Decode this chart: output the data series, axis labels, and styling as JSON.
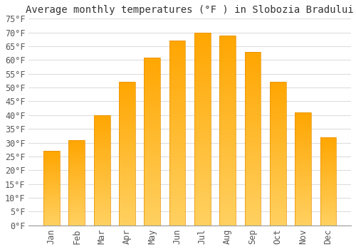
{
  "title": "Average monthly temperatures (°F ) in Slobozia Bradului",
  "months": [
    "Jan",
    "Feb",
    "Mar",
    "Apr",
    "May",
    "Jun",
    "Jul",
    "Aug",
    "Sep",
    "Oct",
    "Nov",
    "Dec"
  ],
  "values": [
    27,
    31,
    40,
    52,
    61,
    67,
    70,
    69,
    63,
    52,
    41,
    32
  ],
  "bar_color_top": "#FFA500",
  "bar_color_bottom": "#FFD060",
  "bar_edge_color": "#E89000",
  "background_color": "#FFFFFF",
  "grid_color": "#DDDDDD",
  "ylim": [
    0,
    75
  ],
  "yticks": [
    0,
    5,
    10,
    15,
    20,
    25,
    30,
    35,
    40,
    45,
    50,
    55,
    60,
    65,
    70,
    75
  ],
  "title_fontsize": 10,
  "tick_fontsize": 8.5,
  "tick_font": "monospace",
  "bar_width": 0.65
}
